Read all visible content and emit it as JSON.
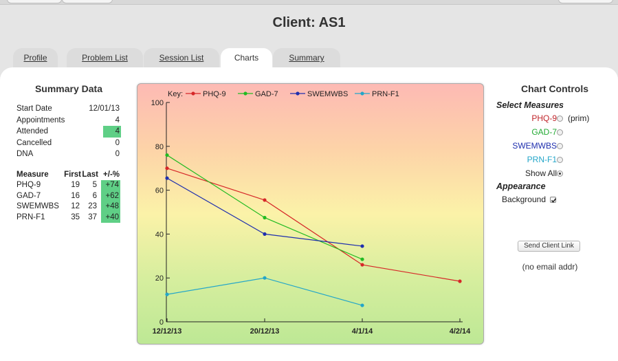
{
  "page": {
    "title": "Client: AS1"
  },
  "tabs": [
    {
      "label": "Profile",
      "active": false
    },
    {
      "label": "Problem List",
      "active": false
    },
    {
      "label": "Session List",
      "active": false
    },
    {
      "label": "Charts",
      "active": true
    },
    {
      "label": "Summary",
      "active": false
    }
  ],
  "summary": {
    "title": "Summary Data",
    "rows": [
      {
        "label": "Start Date",
        "value": "12/01/13",
        "highlight": false
      },
      {
        "label": "Appointments",
        "value": "4",
        "highlight": false
      },
      {
        "label": "Attended",
        "value": "4",
        "highlight": true
      },
      {
        "label": "Cancelled",
        "value": "0",
        "highlight": false
      },
      {
        "label": "DNA",
        "value": "0",
        "highlight": false
      }
    ],
    "measure_headers": [
      "Measure",
      "First",
      "Last",
      "+/-%"
    ],
    "measures": [
      {
        "name": "PHQ-9",
        "first": "19",
        "last": "5",
        "change": "+74"
      },
      {
        "name": "GAD-7",
        "first": "16",
        "last": "6",
        "change": "+62"
      },
      {
        "name": "SWEMWBS",
        "first": "12",
        "last": "23",
        "change": "+48"
      },
      {
        "name": "PRN-F1",
        "first": "35",
        "last": "37",
        "change": "+40"
      }
    ],
    "highlight_color": "#5fcf86"
  },
  "chart_data": {
    "type": "line",
    "title": "",
    "xlabel": "",
    "ylabel": "",
    "key_label": "Key:",
    "categories": [
      "12/12/13",
      "20/12/13",
      "4/1/14",
      "4/2/14"
    ],
    "ylim": [
      0,
      100
    ],
    "yticks": [
      0,
      20,
      40,
      60,
      80,
      100
    ],
    "grid": false,
    "legend_position": "top",
    "background": "gradient red-yellow-green",
    "series": [
      {
        "name": "PHQ-9",
        "color": "#d62728",
        "points": [
          [
            0,
            70
          ],
          [
            1,
            55.5
          ],
          [
            2,
            26
          ],
          [
            3,
            18.5
          ]
        ]
      },
      {
        "name": "GAD-7",
        "color": "#22bb22",
        "points": [
          [
            0,
            76
          ],
          [
            1,
            47.5
          ],
          [
            2,
            28.5
          ]
        ]
      },
      {
        "name": "SWEMWBS",
        "color": "#1f2fae",
        "points": [
          [
            0,
            65.5
          ],
          [
            1,
            40
          ],
          [
            2,
            34.5
          ]
        ]
      },
      {
        "name": "PRN-F1",
        "color": "#23a6c9",
        "points": [
          [
            0,
            12.5
          ],
          [
            1,
            20
          ],
          [
            2,
            7.5
          ]
        ]
      }
    ]
  },
  "controls": {
    "title": "Chart Controls",
    "select_label": "Select Measures",
    "measures": [
      {
        "label": "PHQ-9",
        "color": "#c0242a",
        "selected": false,
        "suffix": "(prim)"
      },
      {
        "label": "GAD-7",
        "color": "#22aa33",
        "selected": false,
        "suffix": ""
      },
      {
        "label": "SWEMWBS",
        "color": "#1f2fae",
        "selected": false,
        "suffix": ""
      },
      {
        "label": "PRN-F1",
        "color": "#23a6c9",
        "selected": false,
        "suffix": ""
      },
      {
        "label": "Show All",
        "color": "#222222",
        "selected": true,
        "suffix": ""
      }
    ],
    "appearance_label": "Appearance",
    "background_label": "Background",
    "background_checked": true,
    "send_button": "Send Client Link",
    "email_note": "(no email addr)"
  }
}
